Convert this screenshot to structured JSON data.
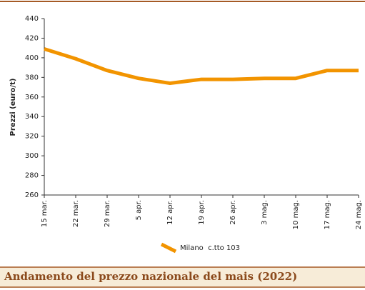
{
  "chart_data": {
    "type": "line",
    "title": "Andamento del prezzo nazionale del mais (2022)",
    "y_label": "Prezzi (euro/t)",
    "categories": [
      "15 mar.",
      "22 mar.",
      "29 mar.",
      "5 apr.",
      "12 apr.",
      "19 apr.",
      "26 apr.",
      "3 mag.",
      "10 mag.",
      "17 mag.",
      "24 mag."
    ],
    "series": [
      {
        "name": "Milano  c.tto 103",
        "color": "#f29400",
        "values": [
          409,
          399,
          387,
          379,
          374,
          378,
          378,
          379,
          379,
          387,
          387
        ]
      }
    ],
    "ylim": [
      260,
      440
    ],
    "yticks": [
      260,
      280,
      300,
      320,
      340,
      360,
      380,
      400,
      420,
      440
    ],
    "grid": false,
    "legend": "bottom"
  }
}
